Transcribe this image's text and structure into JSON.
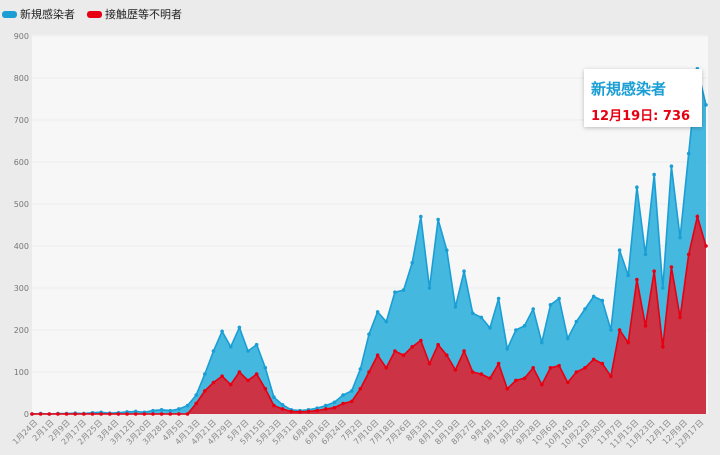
{
  "legend": [
    {
      "label": "新規感染者",
      "color": "#1a9ed4"
    },
    {
      "label": "接触歴等不明者",
      "color": "#e60012"
    }
  ],
  "tooltip": {
    "series": "新規感染者",
    "label": "12月19日: 736"
  },
  "chart_data": {
    "type": "area",
    "title": "",
    "xlabel": "",
    "ylabel": "",
    "ylim": [
      0,
      900
    ],
    "yticks": [
      0,
      100,
      200,
      300,
      400,
      500,
      600,
      700,
      800,
      900
    ],
    "grid": true,
    "legend_position": "top-left",
    "x_start": "1月24日",
    "x_end": "12月19日",
    "x_tick_labels": [
      "1月24日",
      "2月1日",
      "2月9日",
      "2月17日",
      "2月25日",
      "3月4日",
      "3月12日",
      "3月20日",
      "3月28日",
      "4月5日",
      "4月13日",
      "4月21日",
      "4月29日",
      "5月7日",
      "5月15日",
      "5月23日",
      "5月31日",
      "6月8日",
      "6月16日",
      "6月24日",
      "7月2日",
      "7月10日",
      "7月18日",
      "7月26日",
      "8月3日",
      "8月11日",
      "8月19日",
      "8月27日",
      "9月4日",
      "9月12日",
      "9月20日",
      "9月28日",
      "10月6日",
      "10月14日",
      "10月22日",
      "10月30日",
      "11月7日",
      "11月15日",
      "11月23日",
      "12月1日",
      "12月9日",
      "12月17日"
    ],
    "sample_interval_days": 4,
    "series": [
      {
        "name": "新規感染者",
        "color": "#1a9ed4",
        "values": [
          0,
          1,
          0,
          1,
          1,
          2,
          1,
          3,
          4,
          2,
          3,
          5,
          6,
          4,
          8,
          10,
          8,
          12,
          20,
          45,
          95,
          150,
          197,
          160,
          206,
          150,
          165,
          110,
          40,
          22,
          10,
          8,
          10,
          14,
          20,
          28,
          45,
          55,
          107,
          190,
          243,
          220,
          290,
          295,
          360,
          470,
          300,
          463,
          390,
          255,
          340,
          240,
          230,
          205,
          275,
          155,
          200,
          210,
          250,
          170,
          260,
          275,
          180,
          220,
          250,
          280,
          270,
          200,
          390,
          330,
          540,
          380,
          570,
          300,
          590,
          420,
          620,
          822,
          736
        ]
      },
      {
        "name": "接触歴等不明者",
        "color": "#e60012",
        "values": [
          0,
          0,
          0,
          0,
          0,
          0,
          0,
          0,
          0,
          0,
          0,
          0,
          0,
          0,
          0,
          0,
          0,
          0,
          0,
          25,
          55,
          75,
          90,
          70,
          100,
          80,
          95,
          60,
          20,
          12,
          6,
          5,
          6,
          8,
          12,
          15,
          25,
          30,
          60,
          100,
          140,
          110,
          150,
          140,
          160,
          175,
          120,
          165,
          140,
          105,
          150,
          100,
          95,
          85,
          120,
          60,
          80,
          85,
          110,
          70,
          110,
          115,
          75,
          100,
          110,
          130,
          120,
          90,
          200,
          170,
          320,
          210,
          340,
          160,
          350,
          230,
          380,
          470,
          400
        ]
      }
    ]
  }
}
